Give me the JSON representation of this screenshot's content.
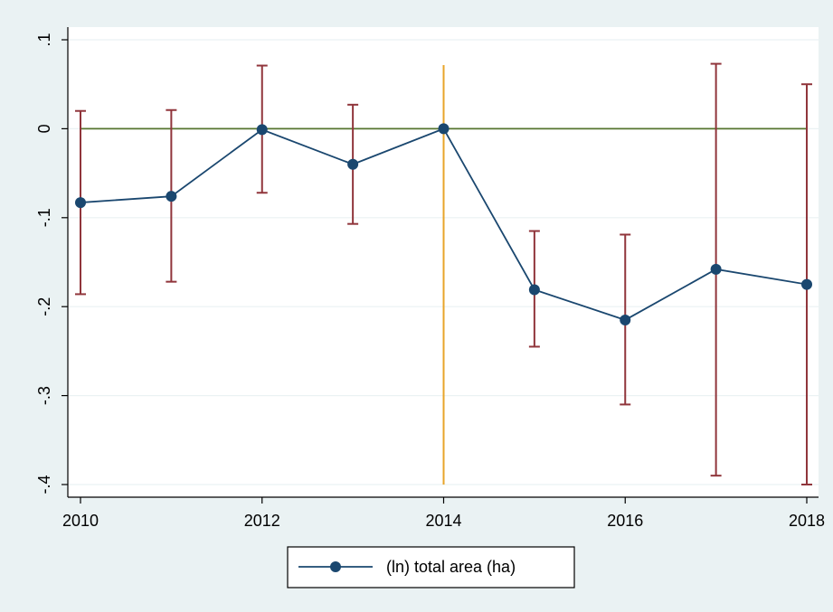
{
  "chart_data": {
    "type": "line",
    "title": "",
    "xlabel": "",
    "ylabel": "",
    "x": [
      2010,
      2011,
      2012,
      2013,
      2014,
      2015,
      2016,
      2017,
      2018
    ],
    "series": [
      {
        "name": "(ln) total area (ha)",
        "values": [
          -0.083,
          -0.076,
          -0.001,
          -0.04,
          0.0,
          -0.181,
          -0.215,
          -0.158,
          -0.175
        ],
        "ci_low": [
          -0.186,
          -0.172,
          -0.072,
          -0.107,
          null,
          -0.245,
          -0.31,
          -0.39,
          -0.4
        ],
        "ci_high": [
          0.02,
          0.021,
          0.071,
          0.027,
          null,
          -0.115,
          -0.119,
          0.073,
          0.05
        ],
        "color": "#1a476f",
        "ci_color": "#90353b"
      }
    ],
    "xlim": [
      2010,
      2018
    ],
    "ylim": [
      -0.4,
      0.1
    ],
    "xticks": [
      2010,
      2012,
      2014,
      2016,
      2018
    ],
    "xtick_labels": [
      "2010",
      "2012",
      "2014",
      "2016",
      "2018"
    ],
    "yticks": [
      0.1,
      0,
      -0.1,
      -0.2,
      -0.3,
      -0.4
    ],
    "ytick_labels": [
      ".1",
      "0",
      "-.1",
      "-.2",
      "-.3",
      "-.4"
    ],
    "reference_lines": [
      {
        "axis": "y",
        "value": 0,
        "color": "#55752f"
      },
      {
        "axis": "x",
        "value": 2014,
        "color": "#e8a42a"
      }
    ],
    "grid": true,
    "legend_position": "bottom",
    "colors": {
      "outer_background": "#eaf2f3",
      "plot_background": "#ffffff",
      "grid": "#eaf2f3"
    }
  }
}
